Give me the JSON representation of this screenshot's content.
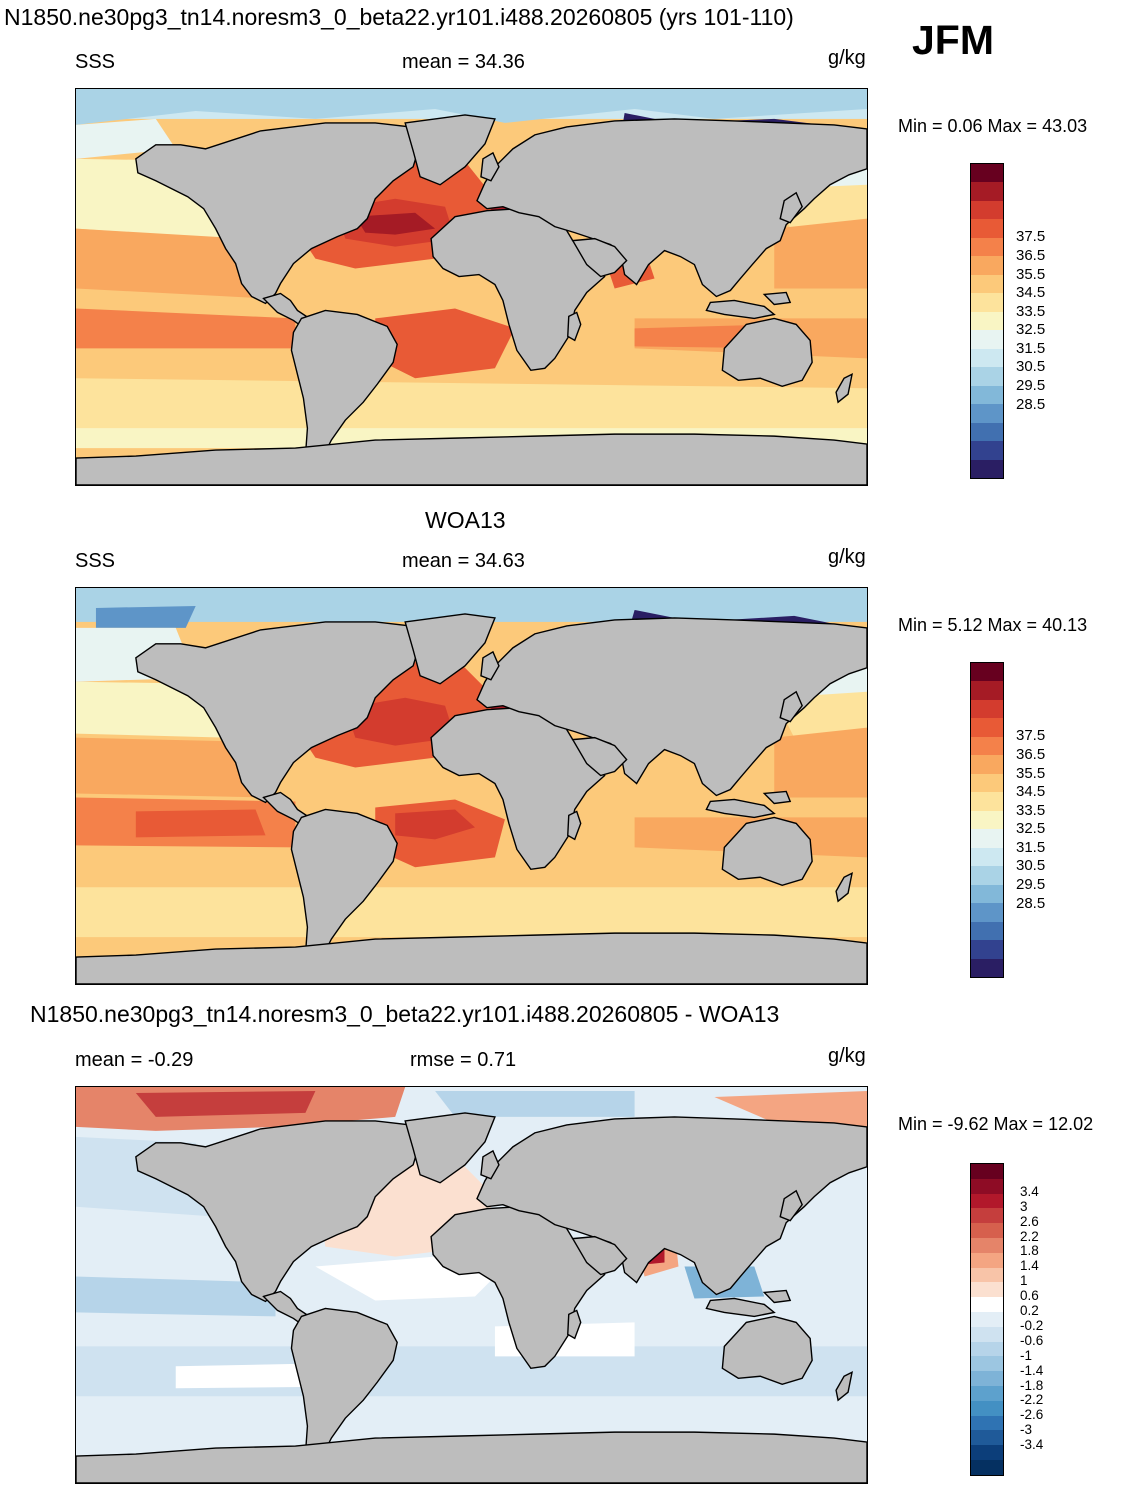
{
  "page": {
    "title": "N1850.ne30pg3_tn14.noresm3_0_beta22.yr101.i488.20260805 (yrs 101-110)",
    "season": "JFM"
  },
  "panels": [
    {
      "heading": "",
      "variable": "SSS",
      "stat1": "mean =  34.36",
      "stat2": "",
      "units": "g/kg",
      "minmax": "Min =   0.06 Max =  43.03",
      "colorbar": {
        "labels": [
          "37.5",
          "36.5",
          "35.5",
          "34.5",
          "33.5",
          "32.5",
          "31.5",
          "30.5",
          "29.5",
          "28.5"
        ],
        "colors": [
          "#67001f",
          "#a51b25",
          "#d33c2e",
          "#e85a36",
          "#f4814a",
          "#f9a85f",
          "#fcc97a",
          "#fde39c",
          "#f9f5c4",
          "#e8f4f2",
          "#cde8f1",
          "#aad3e6",
          "#82b8d9",
          "#5e95c8",
          "#4170b0",
          "#32428f",
          "#2a1e63"
        ]
      }
    },
    {
      "heading": "WOA13",
      "variable": "SSS",
      "stat1": "mean =  34.63",
      "stat2": "",
      "units": "g/kg",
      "minmax": "Min =   5.12 Max =  40.13",
      "colorbar": {
        "labels": [
          "37.5",
          "36.5",
          "35.5",
          "34.5",
          "33.5",
          "32.5",
          "31.5",
          "30.5",
          "29.5",
          "28.5"
        ],
        "colors": [
          "#67001f",
          "#a51b25",
          "#d33c2e",
          "#e85a36",
          "#f4814a",
          "#f9a85f",
          "#fcc97a",
          "#fde39c",
          "#f9f5c4",
          "#e8f4f2",
          "#cde8f1",
          "#aad3e6",
          "#82b8d9",
          "#5e95c8",
          "#4170b0",
          "#32428f",
          "#2a1e63"
        ]
      }
    },
    {
      "heading": "N1850.ne30pg3_tn14.noresm3_0_beta22.yr101.i488.20260805 - WOA13",
      "variable": "",
      "stat1": "mean =  -0.29",
      "stat2": "rmse =   0.71",
      "units": "g/kg",
      "minmax": "Min =  -9.62 Max =  12.02",
      "colorbar": {
        "labels": [
          "3.4",
          "3",
          "2.6",
          "2.2",
          "1.8",
          "1.4",
          "1",
          "0.6",
          "0.2",
          "-0.2",
          "-0.6",
          "-1",
          "-1.4",
          "-1.8",
          "-2.2",
          "-2.6",
          "-3",
          "-3.4"
        ],
        "colors": [
          "#67001f",
          "#8e0c25",
          "#b2182b",
          "#c53e3d",
          "#d6604d",
          "#e58469",
          "#f4a582",
          "#f8c4a8",
          "#fbe0d0",
          "#ffffff",
          "#e3eef6",
          "#cfe2f0",
          "#b6d4e9",
          "#9cc6e1",
          "#7eb3d7",
          "#5da1cd",
          "#4390c3",
          "#2f73b3",
          "#1f5a99",
          "#0c3e7a",
          "#053061"
        ]
      }
    }
  ],
  "map_colors": {
    "land": "#bdbdbd",
    "coast": "#000000"
  }
}
